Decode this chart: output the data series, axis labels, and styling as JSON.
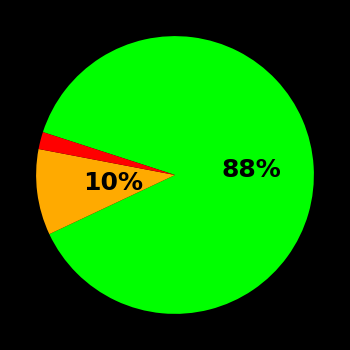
{
  "slices": [
    88,
    10,
    2
  ],
  "colors": [
    "#00ff00",
    "#ffaa00",
    "#ff0000"
  ],
  "labels": [
    "88%",
    "10%",
    ""
  ],
  "background_color": "#000000",
  "label_fontsize": 18,
  "label_fontweight": "bold",
  "startangle": 162,
  "label_radii": [
    0.55,
    0.45,
    0.0
  ]
}
